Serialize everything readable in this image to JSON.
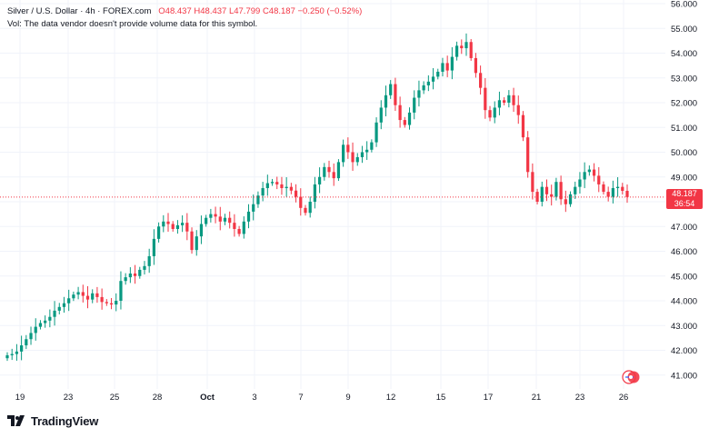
{
  "legend": {
    "symbol": "Silver / U.S. Dollar · 4h · FOREX.com",
    "open": "O48.437",
    "high": "H48.437",
    "low": "L47.799",
    "close": "C48.187",
    "change": "−0.250 (−0.52%)",
    "volume_note": "Vol: The data vendor doesn't provide volume data for this symbol."
  },
  "last_price": {
    "value": "48.187",
    "countdown": "36:54",
    "color": "#f23645"
  },
  "footer": {
    "brand": "TradingView"
  },
  "colors": {
    "up": "#089981",
    "down": "#f23645",
    "grid": "#f0f3fa",
    "axis_text": "#131722"
  },
  "chart_data": {
    "type": "candlestick",
    "title": "Silver / U.S. Dollar · 4h · FOREX.com",
    "y_ticks": [
      "56.000",
      "55.000",
      "54.000",
      "53.000",
      "52.000",
      "51.000",
      "50.000",
      "49.000",
      "48.000",
      "47.000",
      "46.000",
      "45.000",
      "44.000",
      "43.000",
      "42.000",
      "41.000"
    ],
    "ylim": [
      40.5,
      56.2
    ],
    "x_ticks": [
      "19",
      "23",
      "25",
      "28",
      "Oct",
      "3",
      "7",
      "9",
      "12",
      "15",
      "17",
      "21",
      "23",
      "26"
    ],
    "closes": [
      41.8,
      41.85,
      41.95,
      42.2,
      42.45,
      42.7,
      42.95,
      43.1,
      43.2,
      43.35,
      43.6,
      43.75,
      43.9,
      44.1,
      44.25,
      44.35,
      44.2,
      44.05,
      44.3,
      44.15,
      43.95,
      43.9,
      43.85,
      44.0,
      44.8,
      44.95,
      45.1,
      45.0,
      45.25,
      45.4,
      45.8,
      46.5,
      47.0,
      47.2,
      47.1,
      46.9,
      47.05,
      47.15,
      46.8,
      46.05,
      46.6,
      47.1,
      47.35,
      47.5,
      47.4,
      47.2,
      47.35,
      47.15,
      46.9,
      46.7,
      47.2,
      47.6,
      47.9,
      48.25,
      48.55,
      48.75,
      48.8,
      48.7,
      48.55,
      48.6,
      48.45,
      48.2,
      47.75,
      47.55,
      48.0,
      48.7,
      49.0,
      49.4,
      49.2,
      48.95,
      49.6,
      50.3,
      50.0,
      49.6,
      49.8,
      50.0,
      50.1,
      50.4,
      51.2,
      51.8,
      52.3,
      52.75,
      51.9,
      51.3,
      51.1,
      51.6,
      52.2,
      52.5,
      52.7,
      52.85,
      53.05,
      53.25,
      53.6,
      53.3,
      53.85,
      54.3,
      54.2,
      54.45,
      53.8,
      53.2,
      52.6,
      51.7,
      51.4,
      51.8,
      52.1,
      52.0,
      52.3,
      51.9,
      51.5,
      50.6,
      49.2,
      48.4,
      48.0,
      48.6,
      48.3,
      48.2,
      48.8,
      48.1,
      47.9,
      48.3,
      48.6,
      48.9,
      49.2,
      49.3,
      49.05,
      48.7,
      48.4,
      48.2,
      48.55,
      48.6,
      48.44,
      48.19
    ]
  }
}
